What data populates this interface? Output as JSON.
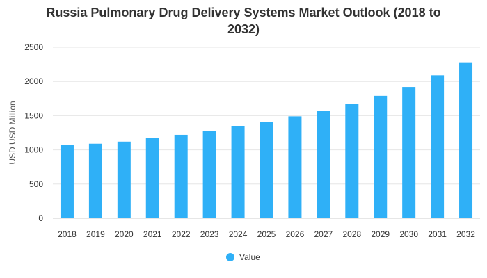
{
  "chart_data": {
    "type": "bar",
    "title_line1": "Russia Pulmonary Drug Delivery Systems Market Outlook (2018 to",
    "title_line2": "2032)",
    "ylabel": "USD USD Million",
    "xlabel": "",
    "ylim": [
      0,
      2500
    ],
    "yticks": [
      0,
      500,
      1000,
      1500,
      2000,
      2500
    ],
    "grid": true,
    "legend_position": "bottom",
    "categories": [
      "2018",
      "2019",
      "2020",
      "2021",
      "2022",
      "2023",
      "2024",
      "2025",
      "2026",
      "2027",
      "2028",
      "2029",
      "2030",
      "2031",
      "2032"
    ],
    "series": [
      {
        "name": "Value",
        "color": "#2fb0f7",
        "values": [
          1070,
          1090,
          1120,
          1170,
          1220,
          1280,
          1350,
          1410,
          1490,
          1570,
          1670,
          1790,
          1920,
          2090,
          2280
        ]
      }
    ]
  }
}
